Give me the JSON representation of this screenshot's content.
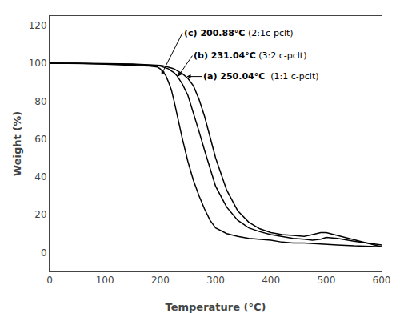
{
  "chart_data": {
    "type": "line",
    "xlabel": "Temperature (°C)",
    "ylabel": "Weight (%)",
    "color": "#000000",
    "grid": false,
    "xlim": [
      0,
      600
    ],
    "ylim": [
      -10,
      125
    ],
    "xticks": [
      0,
      100,
      200,
      300,
      400,
      500,
      600
    ],
    "yticks": [
      0,
      20,
      40,
      60,
      80,
      100,
      120
    ],
    "x": [
      0,
      20,
      50,
      100,
      150,
      180,
      195,
      200,
      205,
      210,
      215,
      220,
      225,
      230,
      240,
      250,
      260,
      270,
      280,
      290,
      300,
      320,
      340,
      360,
      380,
      400,
      420,
      440,
      460,
      475,
      490,
      500,
      520,
      550,
      600
    ],
    "series": [
      {
        "values": [
          100,
          100,
          100,
          99.5,
          99,
          98.5,
          98,
          97,
          95.5,
          93.5,
          90,
          86,
          80,
          73,
          60,
          48,
          38,
          30,
          23,
          17,
          13,
          10,
          8.5,
          7.5,
          7,
          6.5,
          5.5,
          5,
          5,
          4.8,
          4.5,
          4.5,
          4,
          3.5,
          3
        ]
      },
      {
        "values": [
          100,
          100,
          100,
          99.7,
          99.4,
          99.1,
          98.8,
          98.5,
          98,
          97.5,
          97,
          96,
          95,
          93.5,
          89,
          83,
          74,
          64,
          54,
          44,
          35,
          24,
          17,
          13,
          11,
          9.5,
          8.5,
          7.5,
          7,
          6.5,
          7,
          8,
          7.5,
          6,
          4
        ]
      },
      {
        "values": [
          100,
          100,
          100,
          99.8,
          99.6,
          99.3,
          99.1,
          98.9,
          98.7,
          98.4,
          98,
          97.5,
          97,
          96.2,
          94.5,
          92,
          88,
          81,
          72,
          61,
          50,
          33,
          22,
          16,
          12.5,
          10.5,
          9.5,
          9,
          8.5,
          9.5,
          10.5,
          10.5,
          9,
          7,
          3
        ]
      }
    ],
    "annotations": [
      {
        "x": 202,
        "y": 94,
        "text_x": 240,
        "text_y": 116,
        "bold": "(c) 200.88°C",
        "text": " (2:1c-pclt)"
      },
      {
        "x": 232,
        "y": 93,
        "text_x": 258,
        "text_y": 104,
        "bold": "(b) 231.04°C",
        "text": " (3:2 c-pclt)"
      },
      {
        "x": 248,
        "y": 93,
        "text_x": 275,
        "text_y": 93,
        "bold": "(a) 250.04°C",
        "text": "  (1:1 c-pclt)"
      }
    ]
  }
}
